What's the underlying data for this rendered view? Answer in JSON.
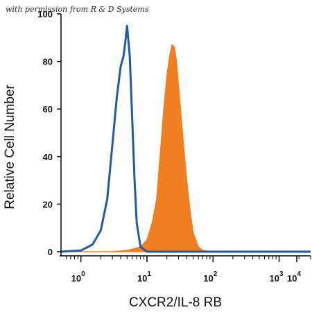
{
  "watermark": "with permission from R & D Systems",
  "chart_data": {
    "type": "area",
    "xlabel": "CXCR2/IL-8 RB",
    "ylabel": "Relative Cell Number",
    "x_scale": "log",
    "xlim": [
      0.5,
      3000
    ],
    "ylim": [
      0,
      100
    ],
    "x_tick_labels": [
      {
        "value": 1,
        "base": "10",
        "exp": "0"
      },
      {
        "value": 10,
        "base": "10",
        "exp": "1"
      },
      {
        "value": 100,
        "base": "10",
        "exp": "2"
      },
      {
        "value": 1000,
        "base": "10",
        "exp": "3"
      },
      {
        "value": 10000,
        "base": "10",
        "exp": "4"
      }
    ],
    "y_ticks": [
      0,
      20,
      40,
      60,
      80,
      100
    ],
    "series": [
      {
        "style": "outline",
        "color": "#1f5aa6",
        "x": [
          0.5,
          1.0,
          1.5,
          2.0,
          2.5,
          3.0,
          3.5,
          4.0,
          4.4,
          4.7,
          5.0,
          5.5,
          6.0,
          6.5,
          7.0,
          8.0,
          10,
          100,
          1000,
          3000
        ],
        "y": [
          0,
          0.5,
          3,
          9,
          22,
          45,
          65,
          78,
          82,
          88,
          95,
          82,
          55,
          30,
          12,
          2,
          0,
          0,
          0,
          0
        ]
      },
      {
        "style": "filled",
        "color": "#f07f22",
        "x": [
          0.5,
          3,
          5,
          8,
          10,
          12,
          14,
          16,
          18,
          20,
          22,
          24,
          26,
          28,
          30,
          35,
          40,
          45,
          50,
          60,
          70,
          100,
          1000,
          3000
        ],
        "y": [
          0,
          0,
          0.5,
          2,
          5,
          12,
          22,
          42,
          60,
          74,
          82,
          87,
          86,
          80,
          70,
          48,
          30,
          17,
          8,
          2,
          0.5,
          0,
          0,
          0
        ]
      }
    ]
  }
}
